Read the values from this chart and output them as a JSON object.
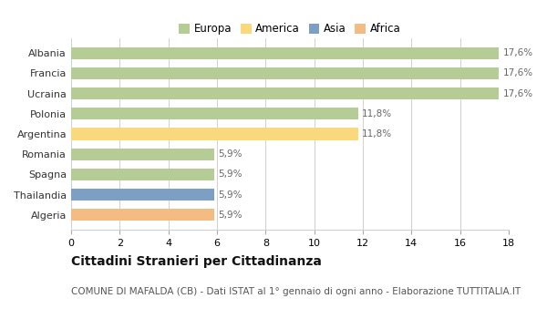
{
  "categories": [
    "Albania",
    "Francia",
    "Ucraina",
    "Polonia",
    "Argentina",
    "Romania",
    "Spagna",
    "Thailandia",
    "Algeria"
  ],
  "values": [
    17.6,
    17.6,
    17.6,
    11.8,
    11.8,
    5.9,
    5.9,
    5.9,
    5.9
  ],
  "labels": [
    "17,6%",
    "17,6%",
    "17,6%",
    "11,8%",
    "11,8%",
    "5,9%",
    "5,9%",
    "5,9%",
    "5,9%"
  ],
  "continents": [
    "Europa",
    "Europa",
    "Europa",
    "Europa",
    "America",
    "Europa",
    "Europa",
    "Asia",
    "Africa"
  ],
  "colors": {
    "Europa": "#b5cc96",
    "America": "#fad97e",
    "Asia": "#7e9fc4",
    "Africa": "#f2bc83"
  },
  "legend_order": [
    "Europa",
    "America",
    "Asia",
    "Africa"
  ],
  "xlim": [
    0,
    18
  ],
  "xticks": [
    0,
    2,
    4,
    6,
    8,
    10,
    12,
    14,
    16,
    18
  ],
  "title": "Cittadini Stranieri per Cittadinanza",
  "subtitle": "COMUNE DI MAFALDA (CB) - Dati ISTAT al 1° gennaio di ogni anno - Elaborazione TUTTITALIA.IT",
  "background_color": "#ffffff",
  "grid_color": "#d0d0d0",
  "title_fontsize": 10,
  "subtitle_fontsize": 7.5,
  "tick_label_fontsize": 8,
  "value_label_fontsize": 7.5,
  "legend_fontsize": 8.5,
  "bar_height": 0.6
}
